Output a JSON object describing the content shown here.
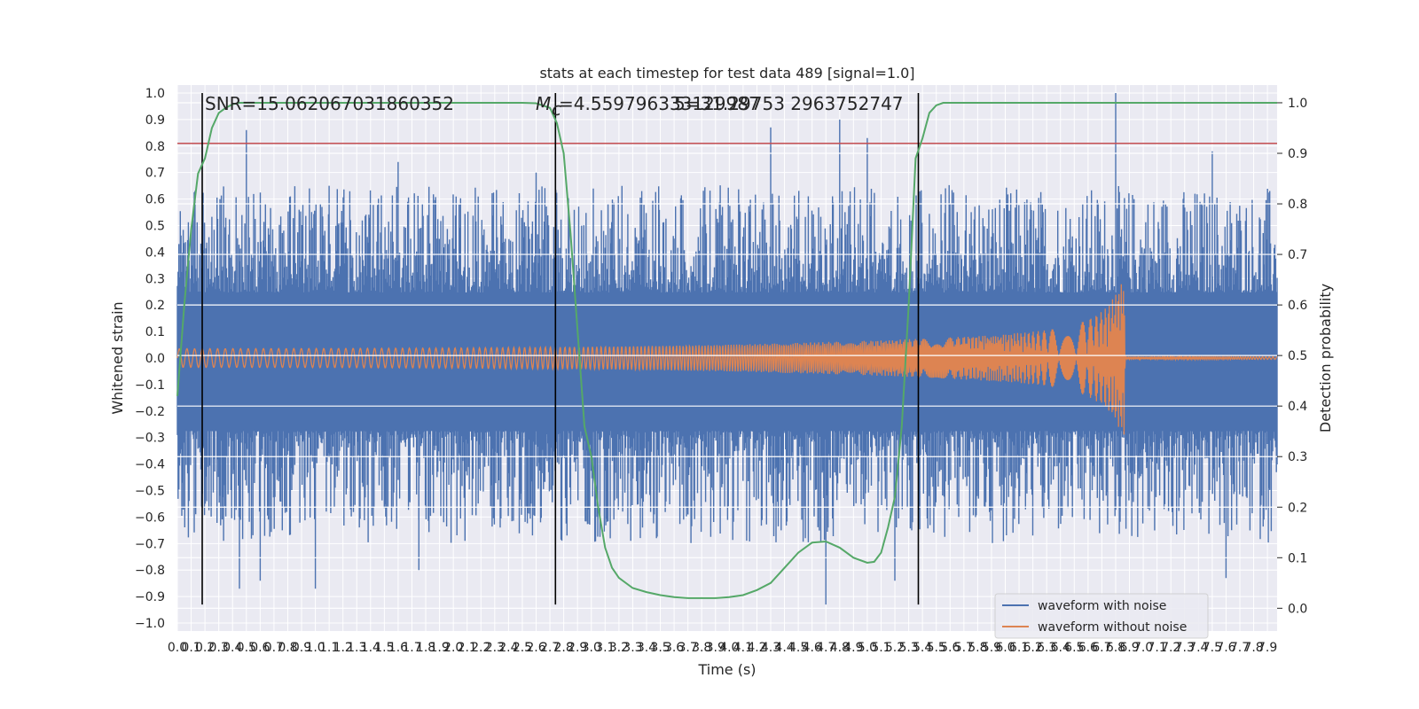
{
  "chart_data": {
    "type": "line",
    "title": "stats at each timestep for test data 489 [signal=1.0]",
    "xlabel": "Time (s)",
    "ylabel_left": "Whitened strain",
    "ylabel_right": "Detection probability",
    "xlim": [
      0,
      7.97
    ],
    "ylim_left": [
      -1.03,
      1.03
    ],
    "ylim_right": [
      -0.045,
      1.035
    ],
    "grid": true,
    "x_ticks": [
      "0.0",
      "0.1",
      "0.2",
      "0.3",
      "0.4",
      "0.5",
      "0.6",
      "0.7",
      "0.8",
      "0.9",
      "1.0",
      "1.1",
      "1.2",
      "1.3",
      "1.4",
      "1.5",
      "1.6",
      "1.7",
      "1.8",
      "1.9",
      "2.0",
      "2.1",
      "2.2",
      "2.3",
      "2.4",
      "2.5",
      "2.6",
      "2.7",
      "2.8",
      "2.9",
      "3.0",
      "3.1",
      "3.2",
      "3.3",
      "3.4",
      "3.5",
      "3.6",
      "3.7",
      "3.8",
      "3.9",
      "4.0",
      "4.1",
      "4.2",
      "4.3",
      "4.4",
      "4.5",
      "4.6",
      "4.7",
      "4.8",
      "4.9",
      "5.0",
      "5.1",
      "5.2",
      "5.3",
      "5.4",
      "5.5",
      "5.6",
      "5.7",
      "5.8",
      "5.9",
      "6.0",
      "6.1",
      "6.2",
      "6.3",
      "6.4",
      "6.5",
      "6.6",
      "6.7",
      "6.8",
      "6.9",
      "7.0",
      "7.1",
      "7.2",
      "7.3",
      "7.4",
      "7.5",
      "7.6",
      "7.7",
      "7.8",
      "7.9"
    ],
    "y_ticks_left": [
      "−1.0",
      "−0.9",
      "−0.8",
      "−0.7",
      "−0.6",
      "−0.5",
      "−0.4",
      "−0.3",
      "−0.2",
      "−0.1",
      "0.0",
      "0.1",
      "0.2",
      "0.3",
      "0.4",
      "0.5",
      "0.6",
      "0.7",
      "0.8",
      "0.9",
      "1.0"
    ],
    "y_ticks_right": [
      "0.0",
      "0.1",
      "0.2",
      "0.3",
      "0.4",
      "0.5",
      "0.6",
      "0.7",
      "0.8",
      "0.9",
      "1.0"
    ],
    "annotations": {
      "snr": "SNR=15.062067031860352",
      "mc_symbol": "M",
      "mc_sub": "c",
      "mc_value": "=4.559796333129987",
      "overlap": "5=31.29753 2963752747"
    },
    "threshold_left": 0.81,
    "vertical_lines_x": [
      0.18,
      2.74,
      5.37
    ],
    "detection_probability": {
      "color": "#55a868",
      "x": [
        0.0,
        0.05,
        0.1,
        0.15,
        0.2,
        0.25,
        0.3,
        0.35,
        0.4,
        0.45,
        0.5,
        0.6,
        0.8,
        1.0,
        1.5,
        2.0,
        2.5,
        2.6,
        2.7,
        2.75,
        2.8,
        2.85,
        2.9,
        2.95,
        3.0,
        3.05,
        3.1,
        3.15,
        3.2,
        3.3,
        3.4,
        3.5,
        3.6,
        3.7,
        3.8,
        3.9,
        4.0,
        4.1,
        4.2,
        4.3,
        4.4,
        4.5,
        4.6,
        4.7,
        4.8,
        4.9,
        5.0,
        5.05,
        5.1,
        5.15,
        5.2,
        5.25,
        5.3,
        5.35,
        5.4,
        5.45,
        5.5,
        5.55,
        5.6,
        5.7,
        6.0,
        7.0,
        7.97
      ],
      "y": [
        0.42,
        0.6,
        0.75,
        0.86,
        0.89,
        0.95,
        0.98,
        0.99,
        0.997,
        1.0,
        1.0,
        1.0,
        1.0,
        1.0,
        1.0,
        1.0,
        1.0,
        0.999,
        0.99,
        0.96,
        0.9,
        0.74,
        0.55,
        0.36,
        0.3,
        0.2,
        0.12,
        0.08,
        0.06,
        0.04,
        0.032,
        0.026,
        0.022,
        0.02,
        0.02,
        0.02,
        0.022,
        0.026,
        0.036,
        0.05,
        0.08,
        0.11,
        0.13,
        0.132,
        0.12,
        0.1,
        0.09,
        0.092,
        0.11,
        0.16,
        0.22,
        0.36,
        0.6,
        0.89,
        0.93,
        0.98,
        0.995,
        1.0,
        1.0,
        1.0,
        1.0,
        1.0,
        1.0
      ]
    },
    "series": [
      {
        "name": "waveform with noise",
        "color": "#4c72b0",
        "envelope_upper": 0.45,
        "envelope_lower": -0.5,
        "extreme_peaks": [
          {
            "x": 0.5,
            "y": 0.86
          },
          {
            "x": 1.1,
            "y": 0.65
          },
          {
            "x": 1.6,
            "y": 0.74
          },
          {
            "x": 2.6,
            "y": 0.7
          },
          {
            "x": 4.3,
            "y": 0.87
          },
          {
            "x": 4.8,
            "y": 0.9
          },
          {
            "x": 5.0,
            "y": 0.83
          },
          {
            "x": 6.8,
            "y": 1.0
          },
          {
            "x": 7.5,
            "y": 0.78
          },
          {
            "x": 0.45,
            "y": -0.87
          },
          {
            "x": 0.6,
            "y": -0.84
          },
          {
            "x": 1.0,
            "y": -0.87
          },
          {
            "x": 1.75,
            "y": -0.8
          },
          {
            "x": 4.7,
            "y": -0.93
          },
          {
            "x": 5.2,
            "y": -0.84
          },
          {
            "x": 7.6,
            "y": -0.83
          }
        ]
      },
      {
        "name": "waveform without noise",
        "color": "#dd8452",
        "x": [
          0.0,
          1.0,
          2.0,
          3.0,
          4.0,
          5.0,
          5.5,
          6.0,
          6.3,
          6.5,
          6.6,
          6.7,
          6.75,
          6.8,
          6.84,
          6.86,
          6.87,
          7.97
        ],
        "amplitude": [
          0.035,
          0.036,
          0.038,
          0.042,
          0.05,
          0.065,
          0.075,
          0.09,
          0.105,
          0.125,
          0.145,
          0.175,
          0.2,
          0.24,
          0.28,
          0.3,
          0.005,
          0.005
        ]
      }
    ],
    "legend": [
      "waveform with noise",
      "waveform without noise"
    ],
    "legend_position": "lower right"
  }
}
